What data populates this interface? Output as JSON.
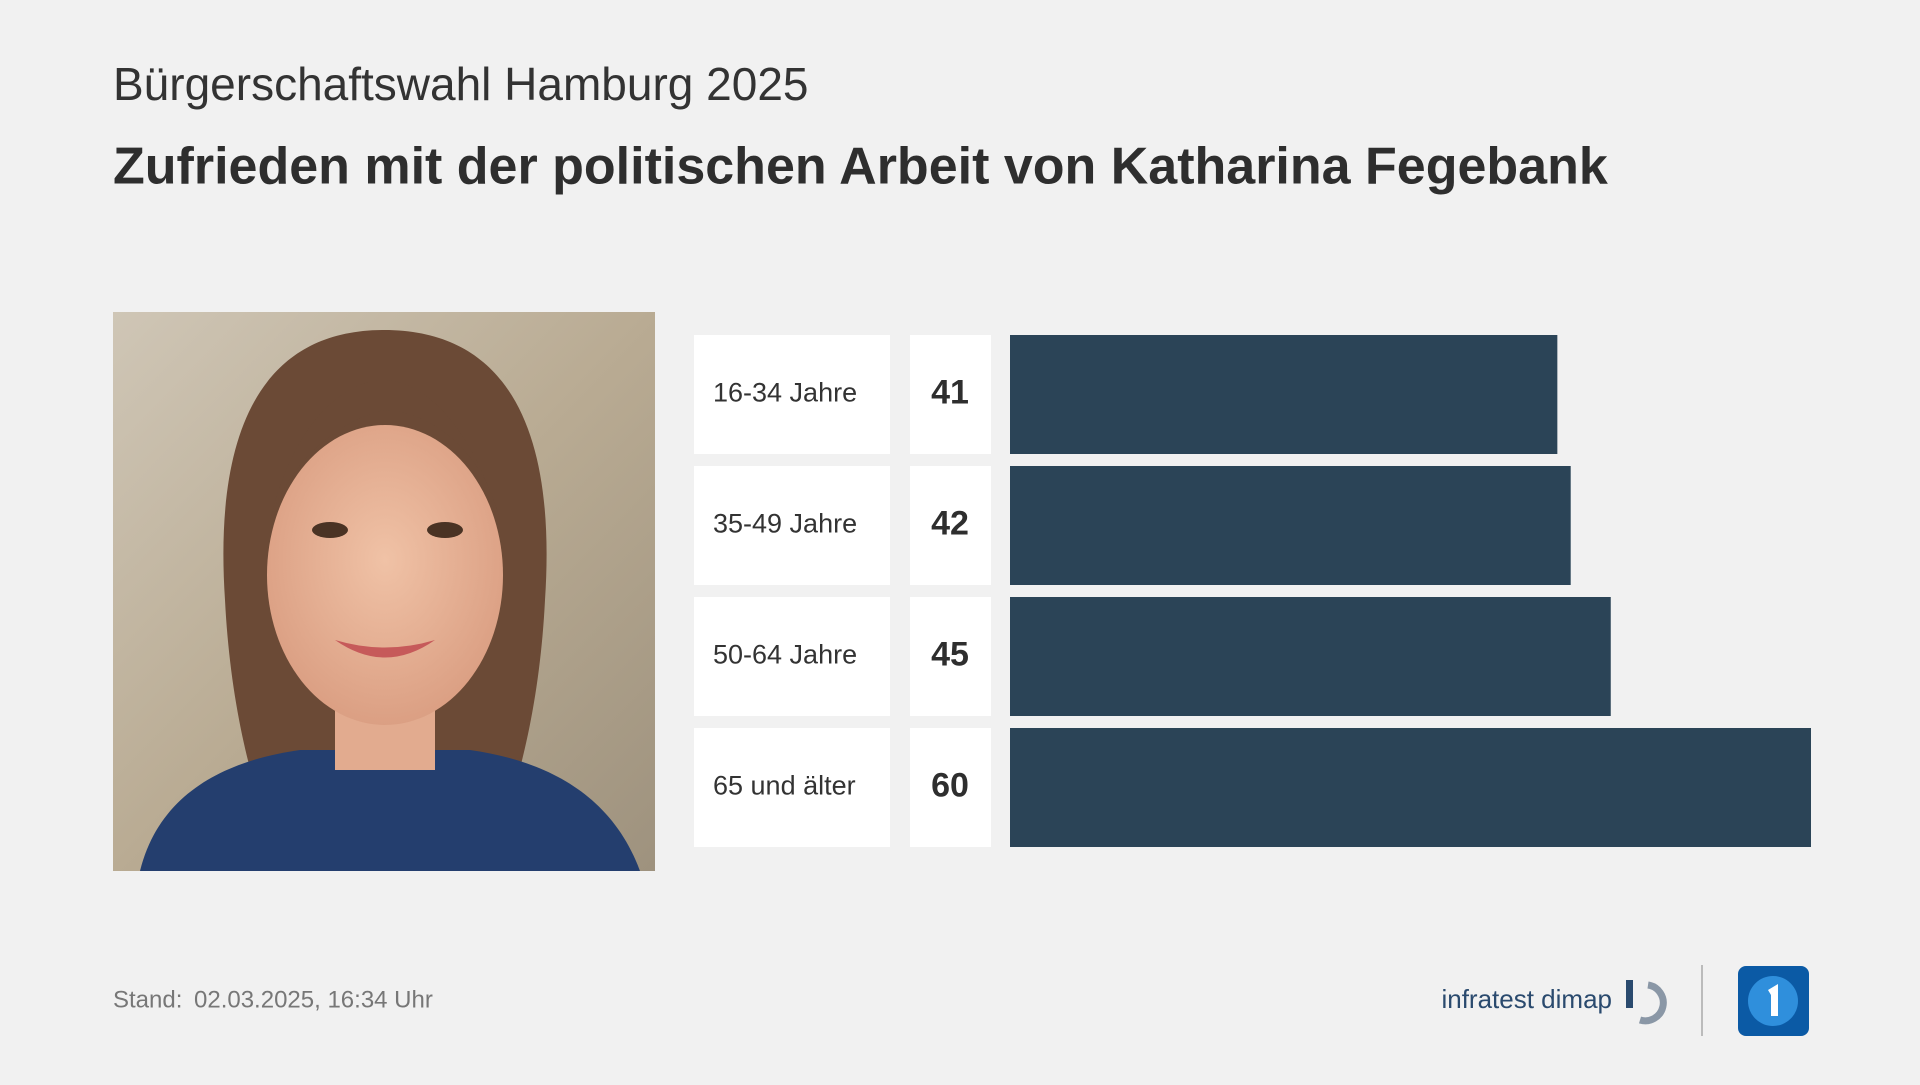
{
  "chart_data": {
    "type": "bar",
    "subtitle": "Bürgerschaftswahl Hamburg 2025",
    "title": "Zufrieden mit der politischen Arbeit von Katharina Fegebank",
    "categories": [
      "16-34 Jahre",
      "35-49 Jahre",
      "50-64 Jahre",
      "65 und älter"
    ],
    "values": [
      41,
      42,
      45,
      60
    ],
    "color": "#2b4457"
  },
  "footer": {
    "label": "Stand:",
    "date": "02.03.2025, 16:34 Uhr",
    "source": "infratest dimap"
  }
}
